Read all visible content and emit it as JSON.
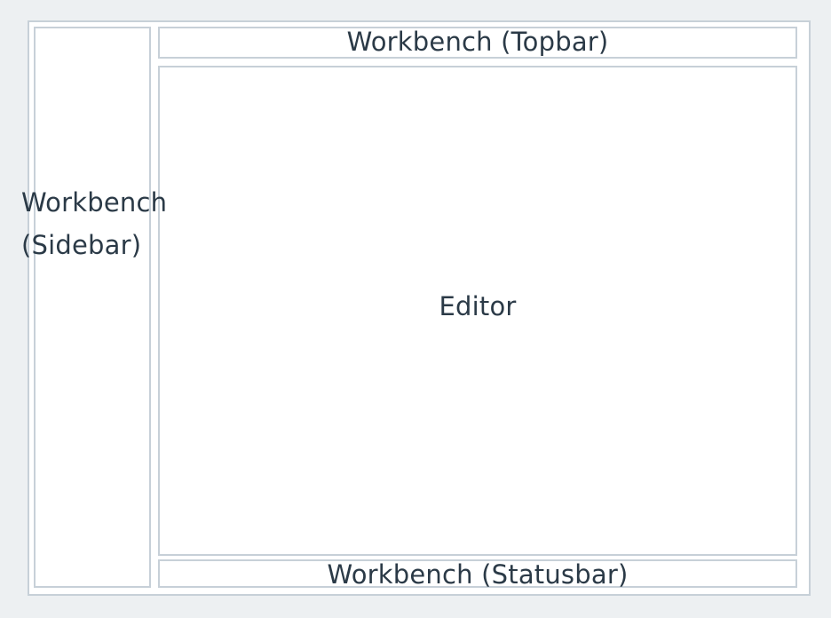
{
  "regions": {
    "sidebar": {
      "line1": "Workbench",
      "line2": "(Sidebar)"
    },
    "topbar": {
      "label": "Workbench (Topbar)"
    },
    "editor": {
      "label": "Editor"
    },
    "statusbar": {
      "label": "Workbench (Statusbar)"
    }
  }
}
